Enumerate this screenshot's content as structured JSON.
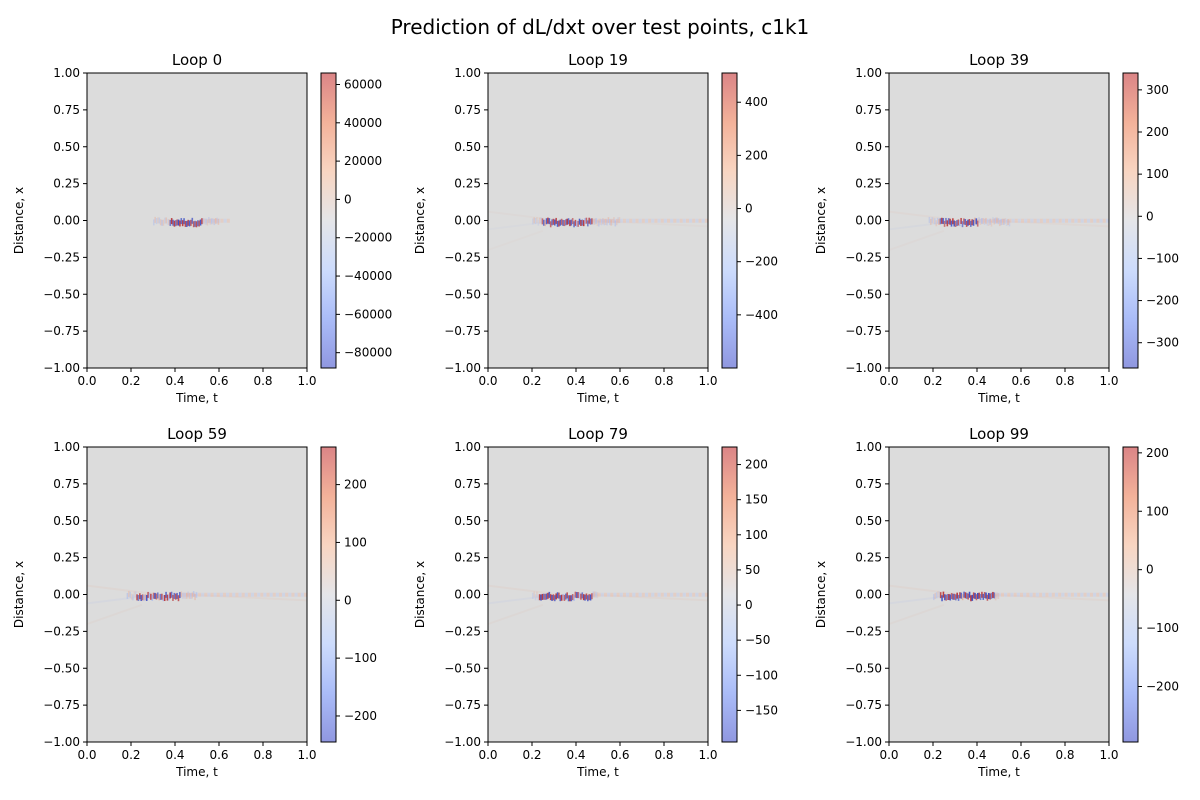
{
  "figure": {
    "title": "Prediction of dL/dxt over test points, c1k1"
  },
  "colormap": {
    "name": "coolwarm",
    "stops": [
      "#6b75d6",
      "#8ea6f6",
      "#bcd0fb",
      "#dcdde1",
      "#f6c7ad",
      "#ef9878",
      "#cf5c5e"
    ],
    "background": "#dcdcdc",
    "alpha": 0.75
  },
  "chart_data": [
    {
      "type": "heatmap",
      "title": "Loop 0",
      "xlabel": "Time, t",
      "ylabel": "Distance, x",
      "xlim": [
        0.0,
        1.0
      ],
      "ylim": [
        -1.0,
        1.0
      ],
      "xticks": [
        "0.0",
        "0.2",
        "0.4",
        "0.6",
        "0.8",
        "1.0"
      ],
      "yticks": [
        "1.00",
        "0.75",
        "0.50",
        "0.25",
        "0.00",
        "−0.25",
        "−0.50",
        "−0.75",
        "−1.00"
      ],
      "colorbar": {
        "range": [
          -88000,
          66000
        ],
        "ticks": [
          {
            "v": 60000,
            "label": "60000"
          },
          {
            "v": 40000,
            "label": "40000"
          },
          {
            "v": 20000,
            "label": "20000"
          },
          {
            "v": 0,
            "label": "0"
          },
          {
            "v": -20000,
            "label": "−20000"
          },
          {
            "v": -40000,
            "label": "−40000"
          },
          {
            "v": -60000,
            "label": "−60000"
          },
          {
            "v": -80000,
            "label": "−80000"
          }
        ]
      },
      "features": {
        "t_start": 0.3,
        "t_end": 0.6,
        "dense_start": 0.37,
        "dense_end": 0.52,
        "trail_end": 0.65,
        "lines": 0.0
      }
    },
    {
      "type": "heatmap",
      "title": "Loop 19",
      "xlabel": "Time, t",
      "ylabel": "Distance, x",
      "xlim": [
        0.0,
        1.0
      ],
      "ylim": [
        -1.0,
        1.0
      ],
      "xticks": [
        "0.0",
        "0.2",
        "0.4",
        "0.6",
        "0.8",
        "1.0"
      ],
      "yticks": [
        "1.00",
        "0.75",
        "0.50",
        "0.25",
        "0.00",
        "−0.25",
        "−0.50",
        "−0.75",
        "−1.00"
      ],
      "colorbar": {
        "range": [
          -600,
          510
        ],
        "ticks": [
          {
            "v": 400,
            "label": "400"
          },
          {
            "v": 200,
            "label": "200"
          },
          {
            "v": 0,
            "label": "0"
          },
          {
            "v": -200,
            "label": "−200"
          },
          {
            "v": -400,
            "label": "−400"
          }
        ]
      },
      "features": {
        "t_start": 0.2,
        "t_end": 0.6,
        "dense_start": 0.24,
        "dense_end": 0.47,
        "trail_end": 1.0,
        "lines": 0.5
      }
    },
    {
      "type": "heatmap",
      "title": "Loop 39",
      "xlabel": "Time, t",
      "ylabel": "Distance, x",
      "xlim": [
        0.0,
        1.0
      ],
      "ylim": [
        -1.0,
        1.0
      ],
      "xticks": [
        "0.0",
        "0.2",
        "0.4",
        "0.6",
        "0.8",
        "1.0"
      ],
      "yticks": [
        "1.00",
        "0.75",
        "0.50",
        "0.25",
        "0.00",
        "−0.25",
        "−0.50",
        "−0.75",
        "−1.00"
      ],
      "colorbar": {
        "range": [
          -360,
          340
        ],
        "ticks": [
          {
            "v": 300,
            "label": "300"
          },
          {
            "v": 200,
            "label": "200"
          },
          {
            "v": 100,
            "label": "100"
          },
          {
            "v": 0,
            "label": "0"
          },
          {
            "v": -100,
            "label": "−100"
          },
          {
            "v": -200,
            "label": "−200"
          },
          {
            "v": -300,
            "label": "−300"
          }
        ]
      },
      "features": {
        "t_start": 0.18,
        "t_end": 0.55,
        "dense_start": 0.22,
        "dense_end": 0.4,
        "trail_end": 1.0,
        "lines": 0.8
      }
    },
    {
      "type": "heatmap",
      "title": "Loop 59",
      "xlabel": "Time, t",
      "ylabel": "Distance, x",
      "xlim": [
        0.0,
        1.0
      ],
      "ylim": [
        -1.0,
        1.0
      ],
      "xticks": [
        "0.0",
        "0.2",
        "0.4",
        "0.6",
        "0.8",
        "1.0"
      ],
      "yticks": [
        "1.00",
        "0.75",
        "0.50",
        "0.25",
        "0.00",
        "−0.25",
        "−0.50",
        "−0.75",
        "−1.00"
      ],
      "colorbar": {
        "range": [
          -245,
          265
        ],
        "ticks": [
          {
            "v": 200,
            "label": "200"
          },
          {
            "v": 100,
            "label": "100"
          },
          {
            "v": 0,
            "label": "0"
          },
          {
            "v": -100,
            "label": "−100"
          },
          {
            "v": -200,
            "label": "−200"
          }
        ]
      },
      "features": {
        "t_start": 0.18,
        "t_end": 0.5,
        "dense_start": 0.22,
        "dense_end": 0.42,
        "trail_end": 1.0,
        "lines": 1.0
      }
    },
    {
      "type": "heatmap",
      "title": "Loop 79",
      "xlabel": "Time, t",
      "ylabel": "Distance, x",
      "xlim": [
        0.0,
        1.0
      ],
      "ylim": [
        -1.0,
        1.0
      ],
      "xticks": [
        "0.0",
        "0.2",
        "0.4",
        "0.6",
        "0.8",
        "1.0"
      ],
      "yticks": [
        "1.00",
        "0.75",
        "0.50",
        "0.25",
        "0.00",
        "−0.25",
        "−0.50",
        "−0.75",
        "−1.00"
      ],
      "colorbar": {
        "range": [
          -195,
          225
        ],
        "ticks": [
          {
            "v": 200,
            "label": "200"
          },
          {
            "v": 150,
            "label": "150"
          },
          {
            "v": 100,
            "label": "100"
          },
          {
            "v": 50,
            "label": "50"
          },
          {
            "v": 0,
            "label": "0"
          },
          {
            "v": -50,
            "label": "−50"
          },
          {
            "v": -100,
            "label": "−100"
          },
          {
            "v": -150,
            "label": "−150"
          }
        ]
      },
      "features": {
        "t_start": 0.2,
        "t_end": 0.5,
        "dense_start": 0.23,
        "dense_end": 0.47,
        "trail_end": 1.0,
        "lines": 1.0
      }
    },
    {
      "type": "heatmap",
      "title": "Loop 99",
      "xlabel": "Time, t",
      "ylabel": "Distance, x",
      "xlim": [
        0.0,
        1.0
      ],
      "ylim": [
        -1.0,
        1.0
      ],
      "xticks": [
        "0.0",
        "0.2",
        "0.4",
        "0.6",
        "0.8",
        "1.0"
      ],
      "yticks": [
        "1.00",
        "0.75",
        "0.50",
        "0.25",
        "0.00",
        "−0.25",
        "−0.50",
        "−0.75",
        "−1.00"
      ],
      "colorbar": {
        "range": [
          -295,
          210
        ],
        "ticks": [
          {
            "v": 200,
            "label": "200"
          },
          {
            "v": 100,
            "label": "100"
          },
          {
            "v": 0,
            "label": "0"
          },
          {
            "v": -100,
            "label": "−100"
          },
          {
            "v": -200,
            "label": "−200"
          }
        ]
      },
      "features": {
        "t_start": 0.2,
        "t_end": 0.5,
        "dense_start": 0.23,
        "dense_end": 0.48,
        "trail_end": 1.0,
        "lines": 1.0
      }
    }
  ]
}
